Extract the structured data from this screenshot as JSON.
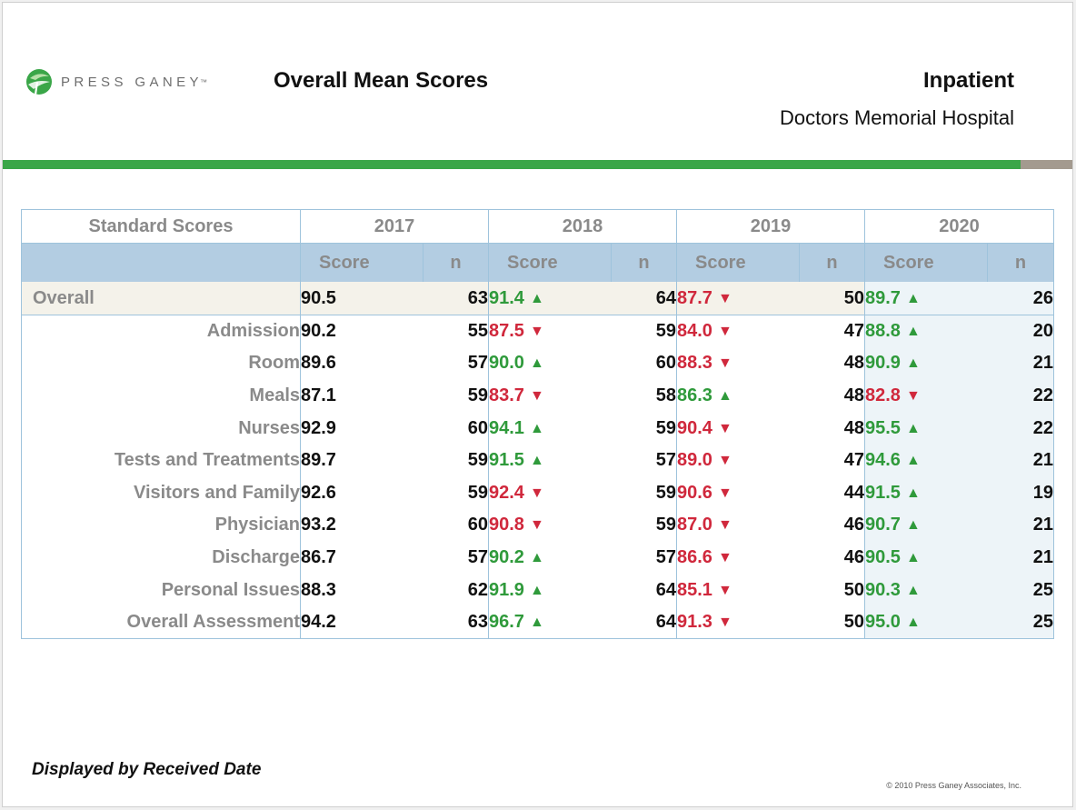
{
  "header": {
    "logo_text": "PRESS GANEY",
    "logo_tm": "™",
    "title": "Overall Mean Scores",
    "report_type": "Inpatient",
    "facility": "Doctors Memorial Hospital"
  },
  "table": {
    "corner_label": "Standard Scores",
    "years": [
      "2017",
      "2018",
      "2019",
      "2020"
    ],
    "score_label": "Score",
    "n_label": "n",
    "rows": [
      {
        "label": "Overall",
        "cells": [
          {
            "score": "90.5",
            "n": "63",
            "trend": "none"
          },
          {
            "score": "91.4",
            "n": "64",
            "trend": "up"
          },
          {
            "score": "87.7",
            "n": "50",
            "trend": "down"
          },
          {
            "score": "89.7",
            "n": "26",
            "trend": "up"
          }
        ]
      },
      {
        "label": "Admission",
        "cells": [
          {
            "score": "90.2",
            "n": "55",
            "trend": "none"
          },
          {
            "score": "87.5",
            "n": "59",
            "trend": "down"
          },
          {
            "score": "84.0",
            "n": "47",
            "trend": "down"
          },
          {
            "score": "88.8",
            "n": "20",
            "trend": "up"
          }
        ]
      },
      {
        "label": "Room",
        "cells": [
          {
            "score": "89.6",
            "n": "57",
            "trend": "none"
          },
          {
            "score": "90.0",
            "n": "60",
            "trend": "up"
          },
          {
            "score": "88.3",
            "n": "48",
            "trend": "down"
          },
          {
            "score": "90.9",
            "n": "21",
            "trend": "up"
          }
        ]
      },
      {
        "label": "Meals",
        "cells": [
          {
            "score": "87.1",
            "n": "59",
            "trend": "none"
          },
          {
            "score": "83.7",
            "n": "58",
            "trend": "down"
          },
          {
            "score": "86.3",
            "n": "48",
            "trend": "up"
          },
          {
            "score": "82.8",
            "n": "22",
            "trend": "down"
          }
        ]
      },
      {
        "label": "Nurses",
        "cells": [
          {
            "score": "92.9",
            "n": "60",
            "trend": "none"
          },
          {
            "score": "94.1",
            "n": "59",
            "trend": "up"
          },
          {
            "score": "90.4",
            "n": "48",
            "trend": "down"
          },
          {
            "score": "95.5",
            "n": "22",
            "trend": "up"
          }
        ]
      },
      {
        "label": "Tests and Treatments",
        "cells": [
          {
            "score": "89.7",
            "n": "59",
            "trend": "none"
          },
          {
            "score": "91.5",
            "n": "57",
            "trend": "up"
          },
          {
            "score": "89.0",
            "n": "47",
            "trend": "down"
          },
          {
            "score": "94.6",
            "n": "21",
            "trend": "up"
          }
        ]
      },
      {
        "label": "Visitors and Family",
        "cells": [
          {
            "score": "92.6",
            "n": "59",
            "trend": "none"
          },
          {
            "score": "92.4",
            "n": "59",
            "trend": "down"
          },
          {
            "score": "90.6",
            "n": "44",
            "trend": "down"
          },
          {
            "score": "91.5",
            "n": "19",
            "trend": "up"
          }
        ]
      },
      {
        "label": "Physician",
        "cells": [
          {
            "score": "93.2",
            "n": "60",
            "trend": "none"
          },
          {
            "score": "90.8",
            "n": "59",
            "trend": "down"
          },
          {
            "score": "87.0",
            "n": "46",
            "trend": "down"
          },
          {
            "score": "90.7",
            "n": "21",
            "trend": "up"
          }
        ]
      },
      {
        "label": "Discharge",
        "cells": [
          {
            "score": "86.7",
            "n": "57",
            "trend": "none"
          },
          {
            "score": "90.2",
            "n": "57",
            "trend": "up"
          },
          {
            "score": "86.6",
            "n": "46",
            "trend": "down"
          },
          {
            "score": "90.5",
            "n": "21",
            "trend": "up"
          }
        ]
      },
      {
        "label": "Personal Issues",
        "cells": [
          {
            "score": "88.3",
            "n": "62",
            "trend": "none"
          },
          {
            "score": "91.9",
            "n": "64",
            "trend": "up"
          },
          {
            "score": "85.1",
            "n": "50",
            "trend": "down"
          },
          {
            "score": "90.3",
            "n": "25",
            "trend": "up"
          }
        ]
      },
      {
        "label": "Overall Assessment",
        "cells": [
          {
            "score": "94.2",
            "n": "63",
            "trend": "none"
          },
          {
            "score": "96.7",
            "n": "64",
            "trend": "up"
          },
          {
            "score": "91.3",
            "n": "50",
            "trend": "down"
          },
          {
            "score": "95.0",
            "n": "25",
            "trend": "up"
          }
        ]
      }
    ]
  },
  "footer": {
    "note": "Displayed by Received Date",
    "copyright": "© 2010 Press Ganey Associates, Inc."
  },
  "colors": {
    "brand_green": "#3aa648",
    "up": "#2f9a3b",
    "down": "#d0283c",
    "header_band": "#b3cde2"
  }
}
